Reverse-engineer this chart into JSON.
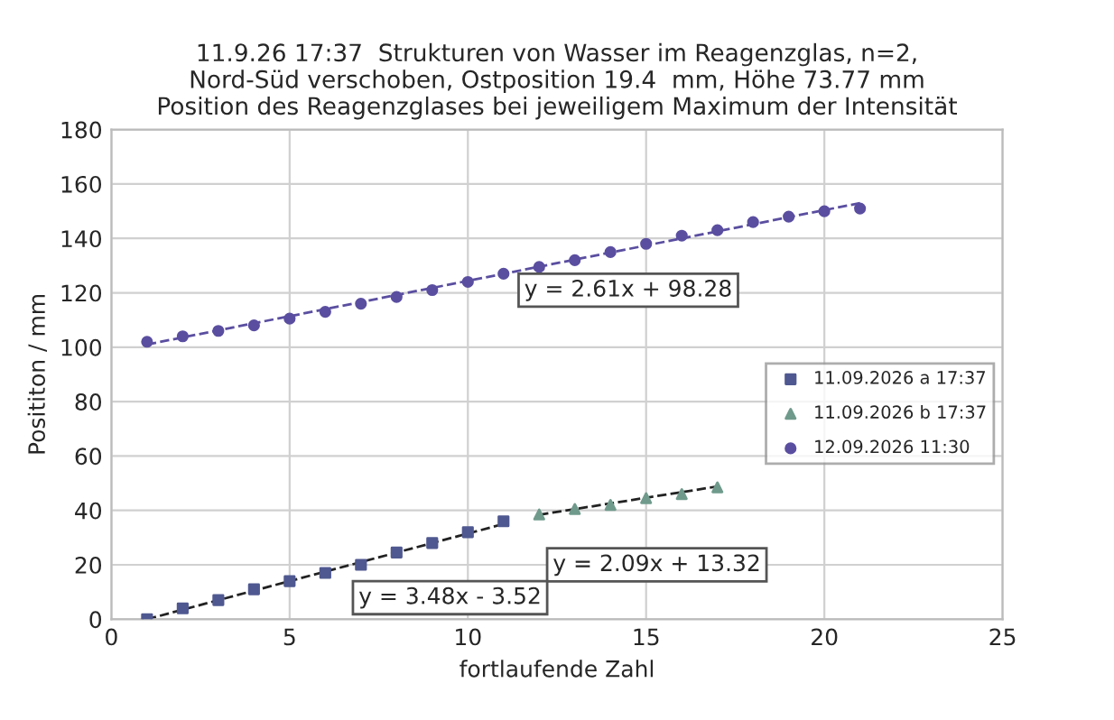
{
  "chart_data": {
    "type": "scatter",
    "title": "11.9.26 17:37  Strukturen von Wasser im Reagenzglas, n=2,\nNord-Süd verschoben, Ostposition 19.4  mm, Höhe 73.77 mm\nPosition des Reagenzglases bei jeweiligem Maximum der Intensität",
    "xlabel": "fortlaufende Zahl",
    "ylabel": "Posititon / mm",
    "xlim": [
      0,
      25
    ],
    "xticks": [
      0,
      5,
      10,
      15,
      20,
      25
    ],
    "ylim": [
      0,
      180
    ],
    "yticks": [
      0,
      20,
      40,
      60,
      80,
      100,
      120,
      140,
      160,
      180
    ],
    "grid": true,
    "legend": "right",
    "series": [
      {
        "name": "11.09.2026 a 17:37",
        "color": "#4f5890",
        "marker": "square",
        "x": [
          1,
          2,
          3,
          4,
          5,
          6,
          7,
          8,
          9,
          10,
          11
        ],
        "values": [
          0,
          4,
          7,
          11,
          14,
          17,
          20,
          24.5,
          28,
          32,
          36
        ]
      },
      {
        "name": "11.09.2026 b 17:37",
        "color": "#6f9a8c",
        "marker": "triangle",
        "x": [
          12,
          13,
          14,
          15,
          16,
          17
        ],
        "values": [
          38.5,
          40.5,
          42,
          44.5,
          46,
          48.5
        ]
      },
      {
        "name": "12.09.2026 11:30",
        "color": "#5a4ea0",
        "marker": "circle",
        "x": [
          1,
          2,
          3,
          4,
          5,
          6,
          7,
          8,
          9,
          10,
          11,
          12,
          13,
          14,
          15,
          16,
          17,
          18,
          19,
          20,
          21
        ],
        "values": [
          102,
          104,
          106,
          108,
          110.5,
          113,
          116,
          118.5,
          121,
          124,
          127,
          129.5,
          132,
          135,
          138,
          141,
          143,
          146,
          148,
          150,
          151
        ]
      },
      {
        "type": "line",
        "color": "#222222",
        "line_style": "dashed",
        "x": [
          1,
          11
        ],
        "values": [
          0,
          35
        ]
      },
      {
        "type": "line",
        "color": "#222222",
        "line_style": "dashed",
        "x": [
          12,
          17
        ],
        "values": [
          38.4,
          48.8
        ]
      },
      {
        "type": "line",
        "color": "#5a4ea0",
        "line_style": "dashed",
        "x": [
          1,
          21
        ],
        "values": [
          101,
          153
        ]
      }
    ],
    "annotations": [
      "y = 2.61x + 98.28",
      "y = 2.09x + 13.32",
      "y = 3.48x - 3.52"
    ]
  }
}
